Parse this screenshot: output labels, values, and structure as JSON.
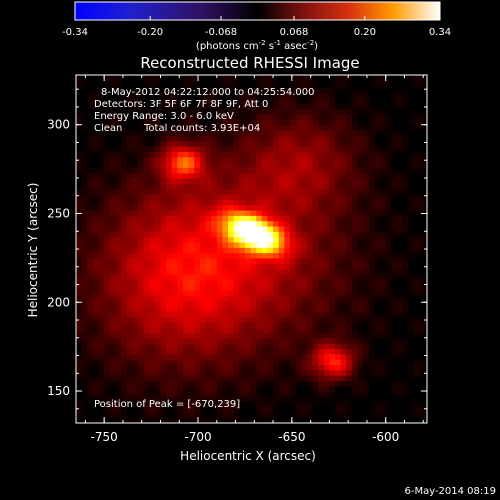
{
  "colorbar": {
    "min": -0.34,
    "max": 0.34,
    "ticks": [
      -0.34,
      -0.2,
      -0.068,
      0.068,
      0.2,
      0.34
    ],
    "tick_labels": [
      "-0.34",
      "-0.20",
      "-0.068",
      "0.068",
      "0.20",
      "0.34"
    ],
    "colormap": "blue-white-red",
    "unit_prefix": "(photons cm",
    "unit_exp1": "-2",
    "unit_mid": " s",
    "unit_exp2": "-1",
    "unit_mid2": " asec",
    "unit_exp3": "-2",
    "unit_suffix": ")"
  },
  "chart_data": {
    "type": "heatmap",
    "title": "Reconstructed RHESSI Image",
    "xlabel": "Heliocentric X (arcsec)",
    "ylabel": "Heliocentric Y (arcsec)",
    "xlim": [
      -765,
      -578
    ],
    "ylim": [
      132,
      328
    ],
    "xticks": [
      -750,
      -700,
      -650,
      -600
    ],
    "yticks": [
      150,
      200,
      250,
      300
    ],
    "xtick_labels": [
      "-750",
      "-700",
      "-650",
      "-600"
    ],
    "ytick_labels": [
      "150",
      "200",
      "250",
      "300"
    ],
    "colormap": "hot",
    "grid": false,
    "sources": [
      {
        "x": -670,
        "y": 239,
        "sx": 11,
        "sy": 6,
        "amp": 1.0,
        "rot": -25
      },
      {
        "x": -708,
        "y": 279,
        "sx": 8,
        "sy": 7,
        "amp": 0.45,
        "rot": 0
      },
      {
        "x": -628,
        "y": 167,
        "sx": 8,
        "sy": 7,
        "amp": 0.42,
        "rot": 0
      },
      {
        "x": -680,
        "y": 225,
        "sx": 40,
        "sy": 35,
        "amp": 0.28,
        "rot": 0
      },
      {
        "x": -645,
        "y": 280,
        "sx": 22,
        "sy": 20,
        "amp": 0.2,
        "rot": 0
      },
      {
        "x": -715,
        "y": 210,
        "sx": 30,
        "sy": 35,
        "amp": 0.22,
        "rot": 0
      }
    ],
    "annotations": {
      "time_range": "8-May-2012 04:22:12.000 to 04:25:54.000",
      "detectors": "Detectors: 3F 5F 6F 7F 8F 9F, Att 0",
      "energy": "Energy Range: 3.0 - 6.0 keV",
      "method": "Clean",
      "counts": "Total counts: 3.93E+04",
      "peak": "Position of Peak = [-670,239]"
    }
  },
  "footer": {
    "timestamp": "6-May-2014 08:19"
  }
}
